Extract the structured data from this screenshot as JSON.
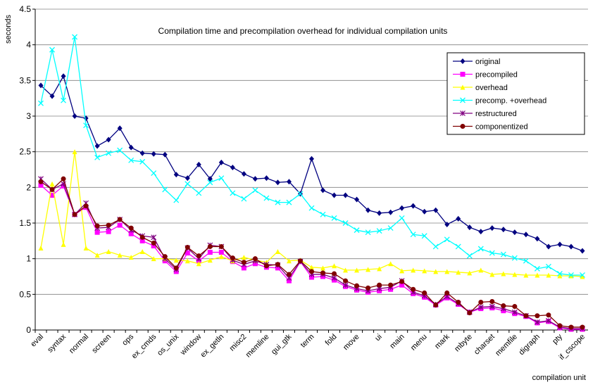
{
  "chart_data": {
    "type": "line",
    "title": "Compilation time and precompilation overhead for individual compilation units",
    "y_label": "seconds",
    "x_label": "compilation unit",
    "categories": [
      "eval",
      null,
      "syntax",
      null,
      "normal",
      null,
      "screen",
      null,
      "ops",
      null,
      "ex_cmds",
      null,
      "os_unix",
      null,
      "window",
      null,
      "ex_getln",
      null,
      "misc2",
      null,
      "memline",
      null,
      "gui_gtk",
      null,
      "term",
      null,
      "fold",
      null,
      "move",
      null,
      "ui",
      null,
      "main",
      null,
      "menu",
      null,
      "mark",
      null,
      "mbyte",
      null,
      "charset",
      null,
      "memfile",
      null,
      "digraph",
      null,
      "pty",
      null,
      "if_cscope"
    ],
    "ylim": [
      0,
      4.5
    ],
    "yticks": [
      0,
      0.5,
      1,
      1.5,
      2,
      2.5,
      3,
      3.5,
      4,
      4.5
    ],
    "grid": true,
    "legend": "upper right",
    "series": [
      {
        "name": "original",
        "color": "#000080",
        "marker": "diamond",
        "values": [
          3.43,
          3.28,
          3.56,
          3.0,
          2.97,
          2.58,
          2.67,
          2.83,
          2.56,
          2.48,
          2.47,
          2.46,
          2.18,
          2.13,
          2.32,
          2.12,
          2.35,
          2.28,
          2.19,
          2.12,
          2.13,
          2.07,
          2.08,
          1.91,
          2.4,
          1.96,
          1.89,
          1.89,
          1.83,
          1.68,
          1.64,
          1.65,
          1.71,
          1.74,
          1.66,
          1.68,
          1.48,
          1.56,
          1.44,
          1.38,
          1.43,
          1.41,
          1.37,
          1.34,
          1.28,
          1.17,
          1.2,
          1.17,
          1.11
        ]
      },
      {
        "name": "precompiled",
        "color": "#ff00ff",
        "marker": "square",
        "values": [
          2.03,
          1.89,
          2.02,
          1.62,
          1.72,
          1.37,
          1.38,
          1.47,
          1.35,
          1.25,
          1.18,
          0.97,
          0.82,
          1.08,
          0.97,
          1.09,
          1.09,
          0.96,
          0.87,
          0.93,
          0.88,
          0.87,
          0.69,
          0.96,
          0.74,
          0.75,
          0.7,
          0.61,
          0.56,
          0.53,
          0.55,
          0.57,
          0.63,
          0.51,
          0.46,
          0.35,
          0.45,
          0.36,
          0.25,
          0.3,
          0.31,
          0.27,
          0.23,
          0.19,
          0.1,
          0.12,
          0.03,
          0.01,
          0.01
        ]
      },
      {
        "name": "overhead",
        "color": "#ffff00",
        "marker": "triangle",
        "values": [
          1.15,
          2.05,
          1.2,
          2.5,
          1.15,
          1.05,
          1.1,
          1.05,
          1.02,
          1.1,
          1.0,
          1.0,
          0.98,
          0.97,
          0.93,
          0.98,
          1.03,
          0.97,
          1.02,
          0.98,
          0.95,
          1.1,
          0.97,
          0.98,
          0.88,
          0.87,
          0.9,
          0.84,
          0.84,
          0.85,
          0.86,
          0.93,
          0.83,
          0.84,
          0.83,
          0.82,
          0.82,
          0.81,
          0.8,
          0.84,
          0.78,
          0.79,
          0.78,
          0.77,
          0.77,
          0.77,
          0.76,
          0.76,
          0.75
        ]
      },
      {
        "name": "precomp. +overhead",
        "color": "#00ffff",
        "marker": "x",
        "values": [
          3.18,
          3.93,
          3.22,
          4.11,
          2.87,
          2.42,
          2.48,
          2.52,
          2.38,
          2.36,
          2.2,
          1.97,
          1.82,
          2.05,
          1.92,
          2.07,
          2.13,
          1.92,
          1.84,
          1.96,
          1.85,
          1.79,
          1.79,
          1.91,
          1.71,
          1.62,
          1.57,
          1.5,
          1.4,
          1.37,
          1.39,
          1.43,
          1.57,
          1.34,
          1.32,
          1.17,
          1.27,
          1.17,
          1.04,
          1.14,
          1.08,
          1.06,
          1.01,
          0.97,
          0.86,
          0.89,
          0.79,
          0.77,
          0.77
        ]
      },
      {
        "name": "restructured",
        "color": "#800080",
        "marker": "asterisk",
        "values": [
          2.12,
          1.97,
          2.05,
          1.62,
          1.78,
          1.43,
          1.44,
          1.55,
          1.4,
          1.32,
          1.3,
          1.0,
          0.85,
          1.15,
          1.0,
          1.19,
          1.17,
          0.98,
          0.92,
          0.97,
          0.92,
          0.91,
          0.73,
          0.96,
          0.78,
          0.78,
          0.73,
          0.63,
          0.58,
          0.55,
          0.58,
          0.6,
          0.69,
          0.53,
          0.48,
          0.36,
          0.47,
          0.37,
          0.25,
          0.32,
          0.33,
          0.3,
          0.25,
          0.2,
          0.11,
          0.13,
          0.04,
          0.02,
          0.02
        ]
      },
      {
        "name": "componentized",
        "color": "#800000",
        "marker": "circle",
        "values": [
          2.08,
          1.97,
          2.12,
          1.62,
          1.74,
          1.46,
          1.47,
          1.55,
          1.43,
          1.3,
          1.22,
          1.03,
          0.87,
          1.16,
          1.04,
          1.17,
          1.17,
          1.01,
          0.95,
          1.0,
          0.9,
          0.92,
          0.78,
          0.97,
          0.82,
          0.8,
          0.79,
          0.69,
          0.62,
          0.59,
          0.63,
          0.63,
          0.68,
          0.57,
          0.52,
          0.35,
          0.52,
          0.39,
          0.24,
          0.39,
          0.4,
          0.34,
          0.33,
          0.2,
          0.2,
          0.21,
          0.06,
          0.04,
          0.04
        ]
      }
    ]
  }
}
